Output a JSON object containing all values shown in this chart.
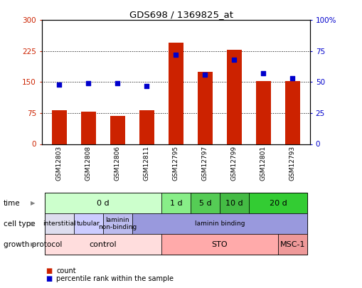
{
  "title": "GDS698 / 1369825_at",
  "samples": [
    "GSM12803",
    "GSM12808",
    "GSM12806",
    "GSM12811",
    "GSM12795",
    "GSM12797",
    "GSM12799",
    "GSM12801",
    "GSM12793"
  ],
  "counts": [
    82,
    78,
    68,
    82,
    245,
    175,
    228,
    152,
    152
  ],
  "percentile": [
    48,
    49,
    49,
    47,
    72,
    56,
    68,
    57,
    53
  ],
  "left_ylim": [
    0,
    300
  ],
  "right_ylim": [
    0,
    100
  ],
  "left_yticks": [
    0,
    75,
    150,
    225,
    300
  ],
  "right_yticks": [
    0,
    25,
    50,
    75,
    100
  ],
  "right_yticklabels": [
    "0",
    "25",
    "50",
    "75",
    "100%"
  ],
  "bar_color": "#cc2200",
  "dot_color": "#0000cc",
  "time_row": {
    "label": "time",
    "groups": [
      {
        "text": "0 d",
        "start": 0,
        "end": 4,
        "color": "#ccffcc"
      },
      {
        "text": "1 d",
        "start": 4,
        "end": 5,
        "color": "#88ee88"
      },
      {
        "text": "5 d",
        "start": 5,
        "end": 6,
        "color": "#55cc55"
      },
      {
        "text": "10 d",
        "start": 6,
        "end": 7,
        "color": "#44bb44"
      },
      {
        "text": "20 d",
        "start": 7,
        "end": 9,
        "color": "#33cc33"
      }
    ]
  },
  "cell_type_row": {
    "label": "cell type",
    "groups": [
      {
        "text": "interstitial",
        "start": 0,
        "end": 1,
        "color": "#ddddee"
      },
      {
        "text": "tubular",
        "start": 1,
        "end": 2,
        "color": "#ccccff"
      },
      {
        "text": "laminin\nnon-binding",
        "start": 2,
        "end": 3,
        "color": "#bbbbee"
      },
      {
        "text": "laminin binding",
        "start": 3,
        "end": 9,
        "color": "#9999dd"
      }
    ]
  },
  "growth_protocol_row": {
    "label": "growth protocol",
    "groups": [
      {
        "text": "control",
        "start": 0,
        "end": 4,
        "color": "#ffdddd"
      },
      {
        "text": "STO",
        "start": 4,
        "end": 8,
        "color": "#ffaaaa"
      },
      {
        "text": "MSC-1",
        "start": 8,
        "end": 9,
        "color": "#ee9999"
      }
    ]
  },
  "legend": [
    {
      "color": "#cc2200",
      "label": "count"
    },
    {
      "color": "#0000cc",
      "label": "percentile rank within the sample"
    }
  ]
}
